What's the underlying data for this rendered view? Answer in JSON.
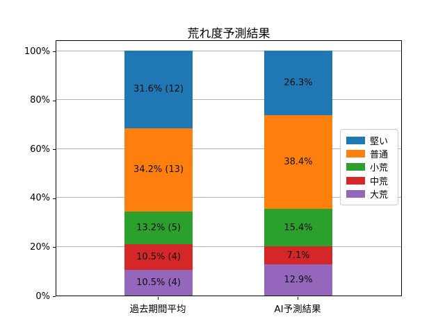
{
  "chart_data": {
    "type": "bar",
    "stacked": true,
    "title": "荒れ度予測結果",
    "categories": [
      "過去期間平均",
      "AI予測結果"
    ],
    "series": [
      {
        "name": "堅い",
        "color": "#1f77b4",
        "values": [
          31.6,
          26.3
        ],
        "labels": [
          "31.6% (12)",
          "26.3%"
        ]
      },
      {
        "name": "普通",
        "color": "#ff7f0e",
        "values": [
          34.2,
          38.4
        ],
        "labels": [
          "34.2% (13)",
          "38.4%"
        ]
      },
      {
        "name": "小荒",
        "color": "#2ca02c",
        "values": [
          13.2,
          15.4
        ],
        "labels": [
          "13.2% (5)",
          "15.4%"
        ]
      },
      {
        "name": "中荒",
        "color": "#d62728",
        "values": [
          10.5,
          7.1
        ],
        "labels": [
          "10.5% (4)",
          "7.1%"
        ]
      },
      {
        "name": "大荒",
        "color": "#9467bd",
        "values": [
          10.5,
          12.9
        ],
        "labels": [
          "10.5% (4)",
          "12.9%"
        ]
      }
    ],
    "y_ticks": [
      "0%",
      "20%",
      "40%",
      "60%",
      "80%",
      "100%"
    ],
    "ylim": [
      0,
      105
    ],
    "xlabel": "",
    "ylabel": "",
    "grid": true,
    "grid_color": "#b0b0b0",
    "legend_position": "right"
  }
}
